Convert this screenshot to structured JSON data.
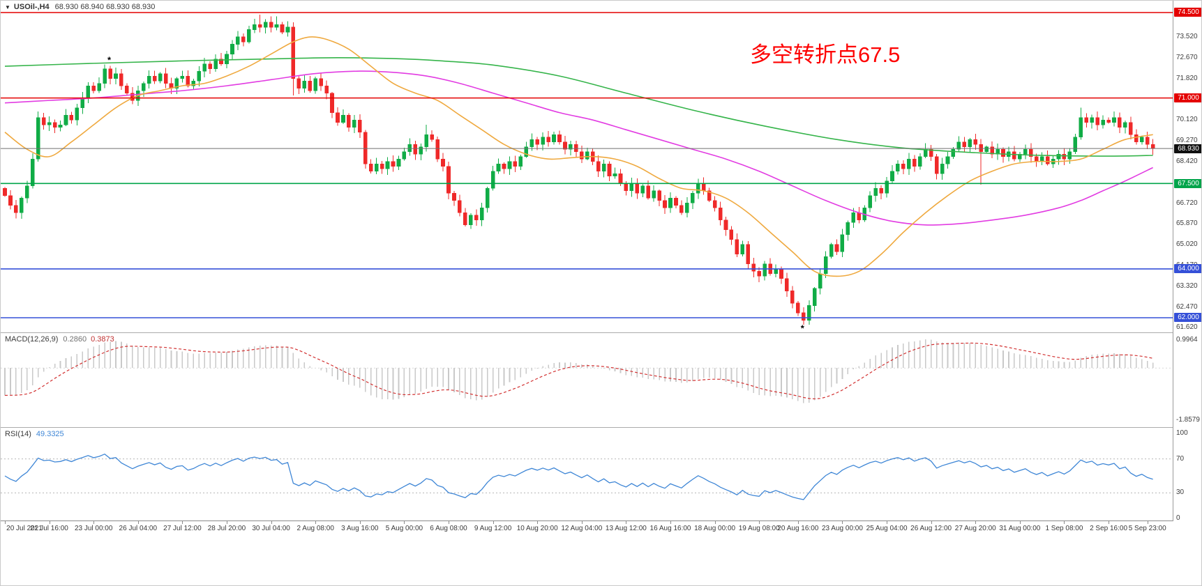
{
  "chart_data": {
    "type": "candlestick",
    "title": {
      "collapse_icon": "▼",
      "symbol": "USOil-,H4",
      "ohlc": "68.930 68.940 68.930 68.930"
    },
    "annotation": {
      "text": "多空转折点67.5",
      "color": "#fe0000"
    },
    "main": {
      "closes": [
        67.0,
        66.6,
        66.3,
        66.9,
        67.4,
        68.5,
        70.2,
        69.9,
        70.0,
        69.8,
        69.9,
        70.3,
        70.1,
        70.6,
        71.0,
        71.5,
        71.3,
        71.6,
        72.2,
        71.8,
        72.0,
        71.5,
        71.2,
        70.9,
        71.3,
        71.6,
        71.9,
        71.7,
        72.0,
        71.6,
        71.4,
        71.8,
        71.9,
        71.5,
        71.7,
        72.1,
        72.4,
        72.2,
        72.6,
        72.4,
        72.8,
        73.2,
        73.5,
        73.3,
        73.8,
        74.0,
        73.9,
        74.1,
        73.9,
        74.0,
        73.7,
        73.9,
        71.8,
        71.4,
        71.7,
        71.3,
        71.8,
        71.5,
        71.2,
        70.4,
        70.0,
        70.3,
        69.8,
        70.1,
        69.6,
        68.3,
        68.0,
        68.3,
        68.1,
        68.4,
        68.2,
        68.5,
        68.8,
        69.1,
        68.7,
        69.0,
        69.5,
        69.3,
        68.5,
        68.2,
        67.1,
        66.8,
        66.3,
        65.8,
        66.2,
        66.0,
        66.5,
        67.3,
        68.0,
        68.3,
        68.1,
        68.4,
        68.2,
        68.6,
        69.0,
        69.3,
        69.1,
        69.4,
        69.2,
        69.5,
        69.2,
        68.9,
        69.1,
        68.8,
        68.5,
        68.8,
        68.4,
        68.0,
        68.3,
        67.8,
        67.9,
        67.5,
        67.2,
        67.5,
        67.1,
        67.4,
        66.9,
        67.2,
        66.8,
        66.5,
        66.9,
        66.6,
        66.3,
        66.7,
        67.1,
        67.5,
        67.2,
        66.8,
        66.5,
        66.0,
        65.6,
        65.2,
        64.6,
        65.0,
        64.2,
        63.9,
        63.7,
        64.2,
        63.8,
        64.0,
        63.6,
        63.1,
        62.6,
        62.2,
        61.9,
        62.5,
        63.2,
        63.8,
        64.5,
        65.0,
        64.7,
        65.4,
        65.9,
        66.3,
        66.0,
        66.5,
        67.0,
        67.3,
        67.1,
        67.6,
        68.0,
        68.3,
        68.1,
        68.5,
        68.2,
        68.6,
        68.9,
        68.6,
        67.9,
        68.3,
        68.6,
        68.9,
        69.2,
        69.0,
        69.3,
        69.1,
        68.8,
        69.0,
        68.7,
        68.9,
        68.6,
        68.8,
        68.5,
        68.7,
        68.9,
        68.6,
        68.4,
        68.6,
        68.3,
        68.5,
        68.7,
        68.5,
        68.8,
        69.4,
        70.2,
        70.0,
        70.2,
        69.9,
        70.1,
        70.0,
        70.2,
        69.8,
        70.0,
        69.5,
        69.2,
        69.4,
        69.1,
        68.93
      ],
      "first_open": 67.3,
      "special_wicks": {
        "6": {
          "high": 70.45
        },
        "46": {
          "high": 74.42
        },
        "49": {
          "high": 74.35
        },
        "52": {
          "low": 71.1
        },
        "76": {
          "high": 69.9
        },
        "144": {
          "low": 61.72
        },
        "176": {
          "low": 67.45
        },
        "194": {
          "high": 70.6
        }
      },
      "colors": {
        "up": "#10ac46",
        "down": "#ef2929"
      },
      "axis_labels": [
        "73.520",
        "72.670",
        "71.820",
        "70.970",
        "70.120",
        "69.270",
        "68.420",
        "67.570",
        "66.720",
        "65.870",
        "65.020",
        "64.170",
        "63.320",
        "62.470",
        "61.620"
      ],
      "hlines": [
        {
          "price": 74.5,
          "label": "74.500",
          "color": "#e40000"
        },
        {
          "price": 71.0,
          "label": "71.000",
          "color": "#e40000"
        },
        {
          "price": 67.5,
          "label": "67.500",
          "color": "#00a44a"
        },
        {
          "price": 64.0,
          "label": "64.000",
          "color": "#3550d8"
        },
        {
          "price": 62.0,
          "label": "62.000",
          "color": "#3550d8"
        }
      ],
      "current_price": {
        "value": 68.93,
        "label": "68.930",
        "line_color": "#6f6f6f",
        "box_color": "#101010"
      },
      "ma_lines": [
        {
          "name": "slow-ma",
          "color": "#35b44a",
          "points": [
            [
              0,
              72.3
            ],
            [
              16,
              72.42
            ],
            [
              32,
              72.52
            ],
            [
              48,
              72.6
            ],
            [
              60,
              72.65
            ],
            [
              72,
              72.6
            ],
            [
              80,
              72.5
            ],
            [
              88,
              72.35
            ],
            [
              100,
              71.9
            ],
            [
              112,
              71.2
            ],
            [
              125,
              70.45
            ],
            [
              137,
              69.85
            ],
            [
              150,
              69.3
            ],
            [
              162,
              68.95
            ],
            [
              175,
              68.76
            ],
            [
              187,
              68.65
            ],
            [
              200,
              68.62
            ],
            [
              207,
              68.65
            ]
          ]
        },
        {
          "name": "mid-ma",
          "color": "#e23ce2",
          "points": [
            [
              0,
              70.8
            ],
            [
              8,
              70.9
            ],
            [
              16,
              71.0
            ],
            [
              24,
              71.15
            ],
            [
              32,
              71.3
            ],
            [
              40,
              71.5
            ],
            [
              48,
              71.75
            ],
            [
              56,
              72.0
            ],
            [
              64,
              72.1
            ],
            [
              70,
              72.05
            ],
            [
              76,
              71.9
            ],
            [
              82,
              71.6
            ],
            [
              88,
              71.2
            ],
            [
              94,
              70.8
            ],
            [
              100,
              70.4
            ],
            [
              106,
              70.1
            ],
            [
              112,
              69.7
            ],
            [
              118,
              69.3
            ],
            [
              124,
              68.9
            ],
            [
              130,
              68.5
            ],
            [
              136,
              68.0
            ],
            [
              142,
              67.4
            ],
            [
              148,
              66.8
            ],
            [
              154,
              66.3
            ],
            [
              160,
              65.95
            ],
            [
              166,
              65.8
            ],
            [
              172,
              65.85
            ],
            [
              178,
              66.0
            ],
            [
              184,
              66.2
            ],
            [
              190,
              66.5
            ],
            [
              194,
              66.8
            ],
            [
              198,
              67.2
            ],
            [
              202,
              67.6
            ],
            [
              207,
              68.15
            ]
          ]
        },
        {
          "name": "fast-ma",
          "color": "#efa93f",
          "points": [
            [
              0,
              69.6
            ],
            [
              4,
              68.9
            ],
            [
              8,
              68.6
            ],
            [
              12,
              69.2
            ],
            [
              16,
              69.9
            ],
            [
              20,
              70.6
            ],
            [
              24,
              71.1
            ],
            [
              28,
              71.3
            ],
            [
              32,
              71.5
            ],
            [
              36,
              71.6
            ],
            [
              40,
              71.9
            ],
            [
              44,
              72.3
            ],
            [
              48,
              72.8
            ],
            [
              52,
              73.3
            ],
            [
              55,
              73.5
            ],
            [
              58,
              73.4
            ],
            [
              62,
              73.0
            ],
            [
              66,
              72.3
            ],
            [
              70,
              71.6
            ],
            [
              74,
              71.2
            ],
            [
              78,
              70.9
            ],
            [
              82,
              70.3
            ],
            [
              86,
              69.7
            ],
            [
              90,
              69.1
            ],
            [
              94,
              68.7
            ],
            [
              98,
              68.5
            ],
            [
              102,
              68.55
            ],
            [
              106,
              68.6
            ],
            [
              110,
              68.5
            ],
            [
              114,
              68.2
            ],
            [
              118,
              67.7
            ],
            [
              122,
              67.3
            ],
            [
              126,
              67.2
            ],
            [
              130,
              66.9
            ],
            [
              134,
              66.3
            ],
            [
              138,
              65.5
            ],
            [
              142,
              64.7
            ],
            [
              146,
              63.9
            ],
            [
              150,
              63.7
            ],
            [
              154,
              63.9
            ],
            [
              158,
              64.6
            ],
            [
              162,
              65.5
            ],
            [
              166,
              66.3
            ],
            [
              170,
              67.0
            ],
            [
              174,
              67.6
            ],
            [
              178,
              68.0
            ],
            [
              182,
              68.3
            ],
            [
              186,
              68.4
            ],
            [
              190,
              68.4
            ],
            [
              194,
              68.5
            ],
            [
              198,
              68.9
            ],
            [
              202,
              69.3
            ],
            [
              207,
              69.5
            ]
          ]
        }
      ],
      "markers": [
        {
          "bar": 19,
          "price": 72.55
        },
        {
          "bar": 144,
          "price": 61.56
        }
      ],
      "marker_color": "#e02020"
    },
    "macd": {
      "label": "MACD(12,26,9)",
      "value_main": "0.2860",
      "value_signal": "0.3873",
      "axis_max": "0.9964",
      "axis_min": "-1.8579",
      "fast": 12,
      "slow": 26,
      "signal": 9,
      "histogram_color": "#c9c9c9",
      "signal_color": "#d23030"
    },
    "rsi": {
      "label": "RSI(14)",
      "value": "49.3325",
      "period": 14,
      "levels": [
        70,
        30
      ],
      "axis_labels": [
        "100",
        "70",
        "30",
        "0"
      ],
      "line_color": "#3e86d6",
      "level_color": "#b5b5b5"
    },
    "time_labels": [
      {
        "bar": 0,
        "text": "20 Jul 2021"
      },
      {
        "bar": 8,
        "text": "21 Jul 16:00"
      },
      {
        "bar": 16,
        "text": "23 Jul 00:00"
      },
      {
        "bar": 24,
        "text": "26 Jul 04:00"
      },
      {
        "bar": 32,
        "text": "27 Jul 12:00"
      },
      {
        "bar": 40,
        "text": "28 Jul 20:00"
      },
      {
        "bar": 48,
        "text": "30 Jul 04:00"
      },
      {
        "bar": 56,
        "text": "2 Aug 08:00"
      },
      {
        "bar": 64,
        "text": "3 Aug 16:00"
      },
      {
        "bar": 72,
        "text": "5 Aug 00:00"
      },
      {
        "bar": 80,
        "text": "6 Aug 08:00"
      },
      {
        "bar": 88,
        "text": "9 Aug 12:00"
      },
      {
        "bar": 96,
        "text": "10 Aug 20:00"
      },
      {
        "bar": 104,
        "text": "12 Aug 04:00"
      },
      {
        "bar": 112,
        "text": "13 Aug 12:00"
      },
      {
        "bar": 120,
        "text": "16 Aug 16:00"
      },
      {
        "bar": 128,
        "text": "18 Aug 00:00"
      },
      {
        "bar": 136,
        "text": "19 Aug 08:00"
      },
      {
        "bar": 143,
        "text": "20 Aug 16:00"
      },
      {
        "bar": 151,
        "text": "23 Aug 00:00"
      },
      {
        "bar": 159,
        "text": "25 Aug 04:00"
      },
      {
        "bar": 167,
        "text": "26 Aug 12:00"
      },
      {
        "bar": 175,
        "text": "27 Aug 20:00"
      },
      {
        "bar": 183,
        "text": "31 Aug 00:00"
      },
      {
        "bar": 191,
        "text": "1 Sep 08:00"
      },
      {
        "bar": 199,
        "text": "2 Sep 16:00"
      },
      {
        "bar": 206,
        "text": "5 Sep 23:00"
      }
    ]
  }
}
